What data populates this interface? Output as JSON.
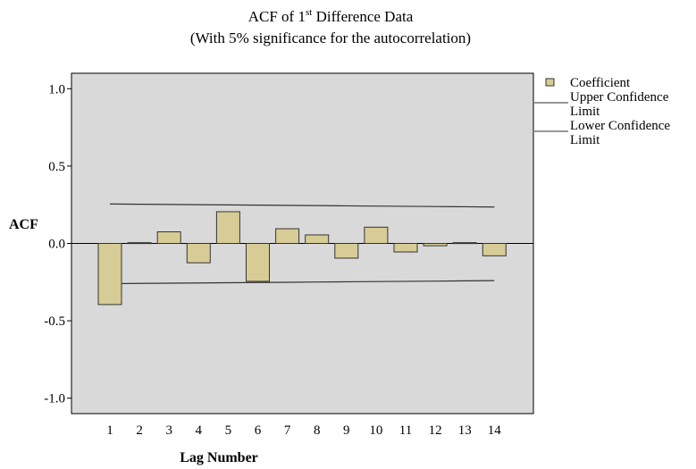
{
  "chart_data": {
    "type": "bar",
    "title_line1_prefix": "ACF of 1",
    "title_line1_sup": "st",
    "title_line1_suffix": " Difference Data",
    "title_line2": "(With 5% significance for the autocorrelation)",
    "xlabel": "Lag Number",
    "ylabel": "ACF",
    "ylim": [
      -1.1,
      1.1
    ],
    "yticks": [
      1.0,
      0.5,
      0.0,
      -0.5,
      -1.0
    ],
    "ytick_labels": [
      "1.0",
      "0.5",
      "0.0",
      "-0.5",
      "-1.0"
    ],
    "categories": [
      "1",
      "2",
      "3",
      "4",
      "5",
      "6",
      "7",
      "8",
      "9",
      "10",
      "11",
      "12",
      "13",
      "14"
    ],
    "series": [
      {
        "name": "Coefficient",
        "values": [
          -0.395,
          0.005,
          0.075,
          -0.125,
          0.205,
          -0.245,
          0.095,
          0.055,
          -0.095,
          0.105,
          -0.055,
          -0.015,
          0.005,
          -0.08
        ]
      }
    ],
    "upper_confidence_limit": [
      0.255,
      0.2535,
      0.252,
      0.2505,
      0.249,
      0.2475,
      0.246,
      0.2445,
      0.243,
      0.2415,
      0.24,
      0.2385,
      0.237,
      0.2355
    ],
    "lower_confidence_limit": [
      -0.26,
      -0.2585,
      -0.257,
      -0.2555,
      -0.254,
      -0.2525,
      -0.251,
      -0.2495,
      -0.248,
      -0.2465,
      -0.245,
      -0.2435,
      -0.242,
      -0.2405
    ],
    "legend": {
      "placement": "top-right",
      "entries": [
        {
          "label_lines": [
            "Coefficient"
          ],
          "kind": "bar"
        },
        {
          "label_lines": [
            "Upper Confidence",
            "Limit"
          ],
          "kind": "line"
        },
        {
          "label_lines": [
            "Lower Confidence",
            "Limit"
          ],
          "kind": "line"
        }
      ]
    },
    "colors": {
      "plot_background": "#d9d9d9",
      "bar_fill": "#d8cc96",
      "bar_stroke": "#333333",
      "line": "#333333"
    },
    "grid": false
  }
}
